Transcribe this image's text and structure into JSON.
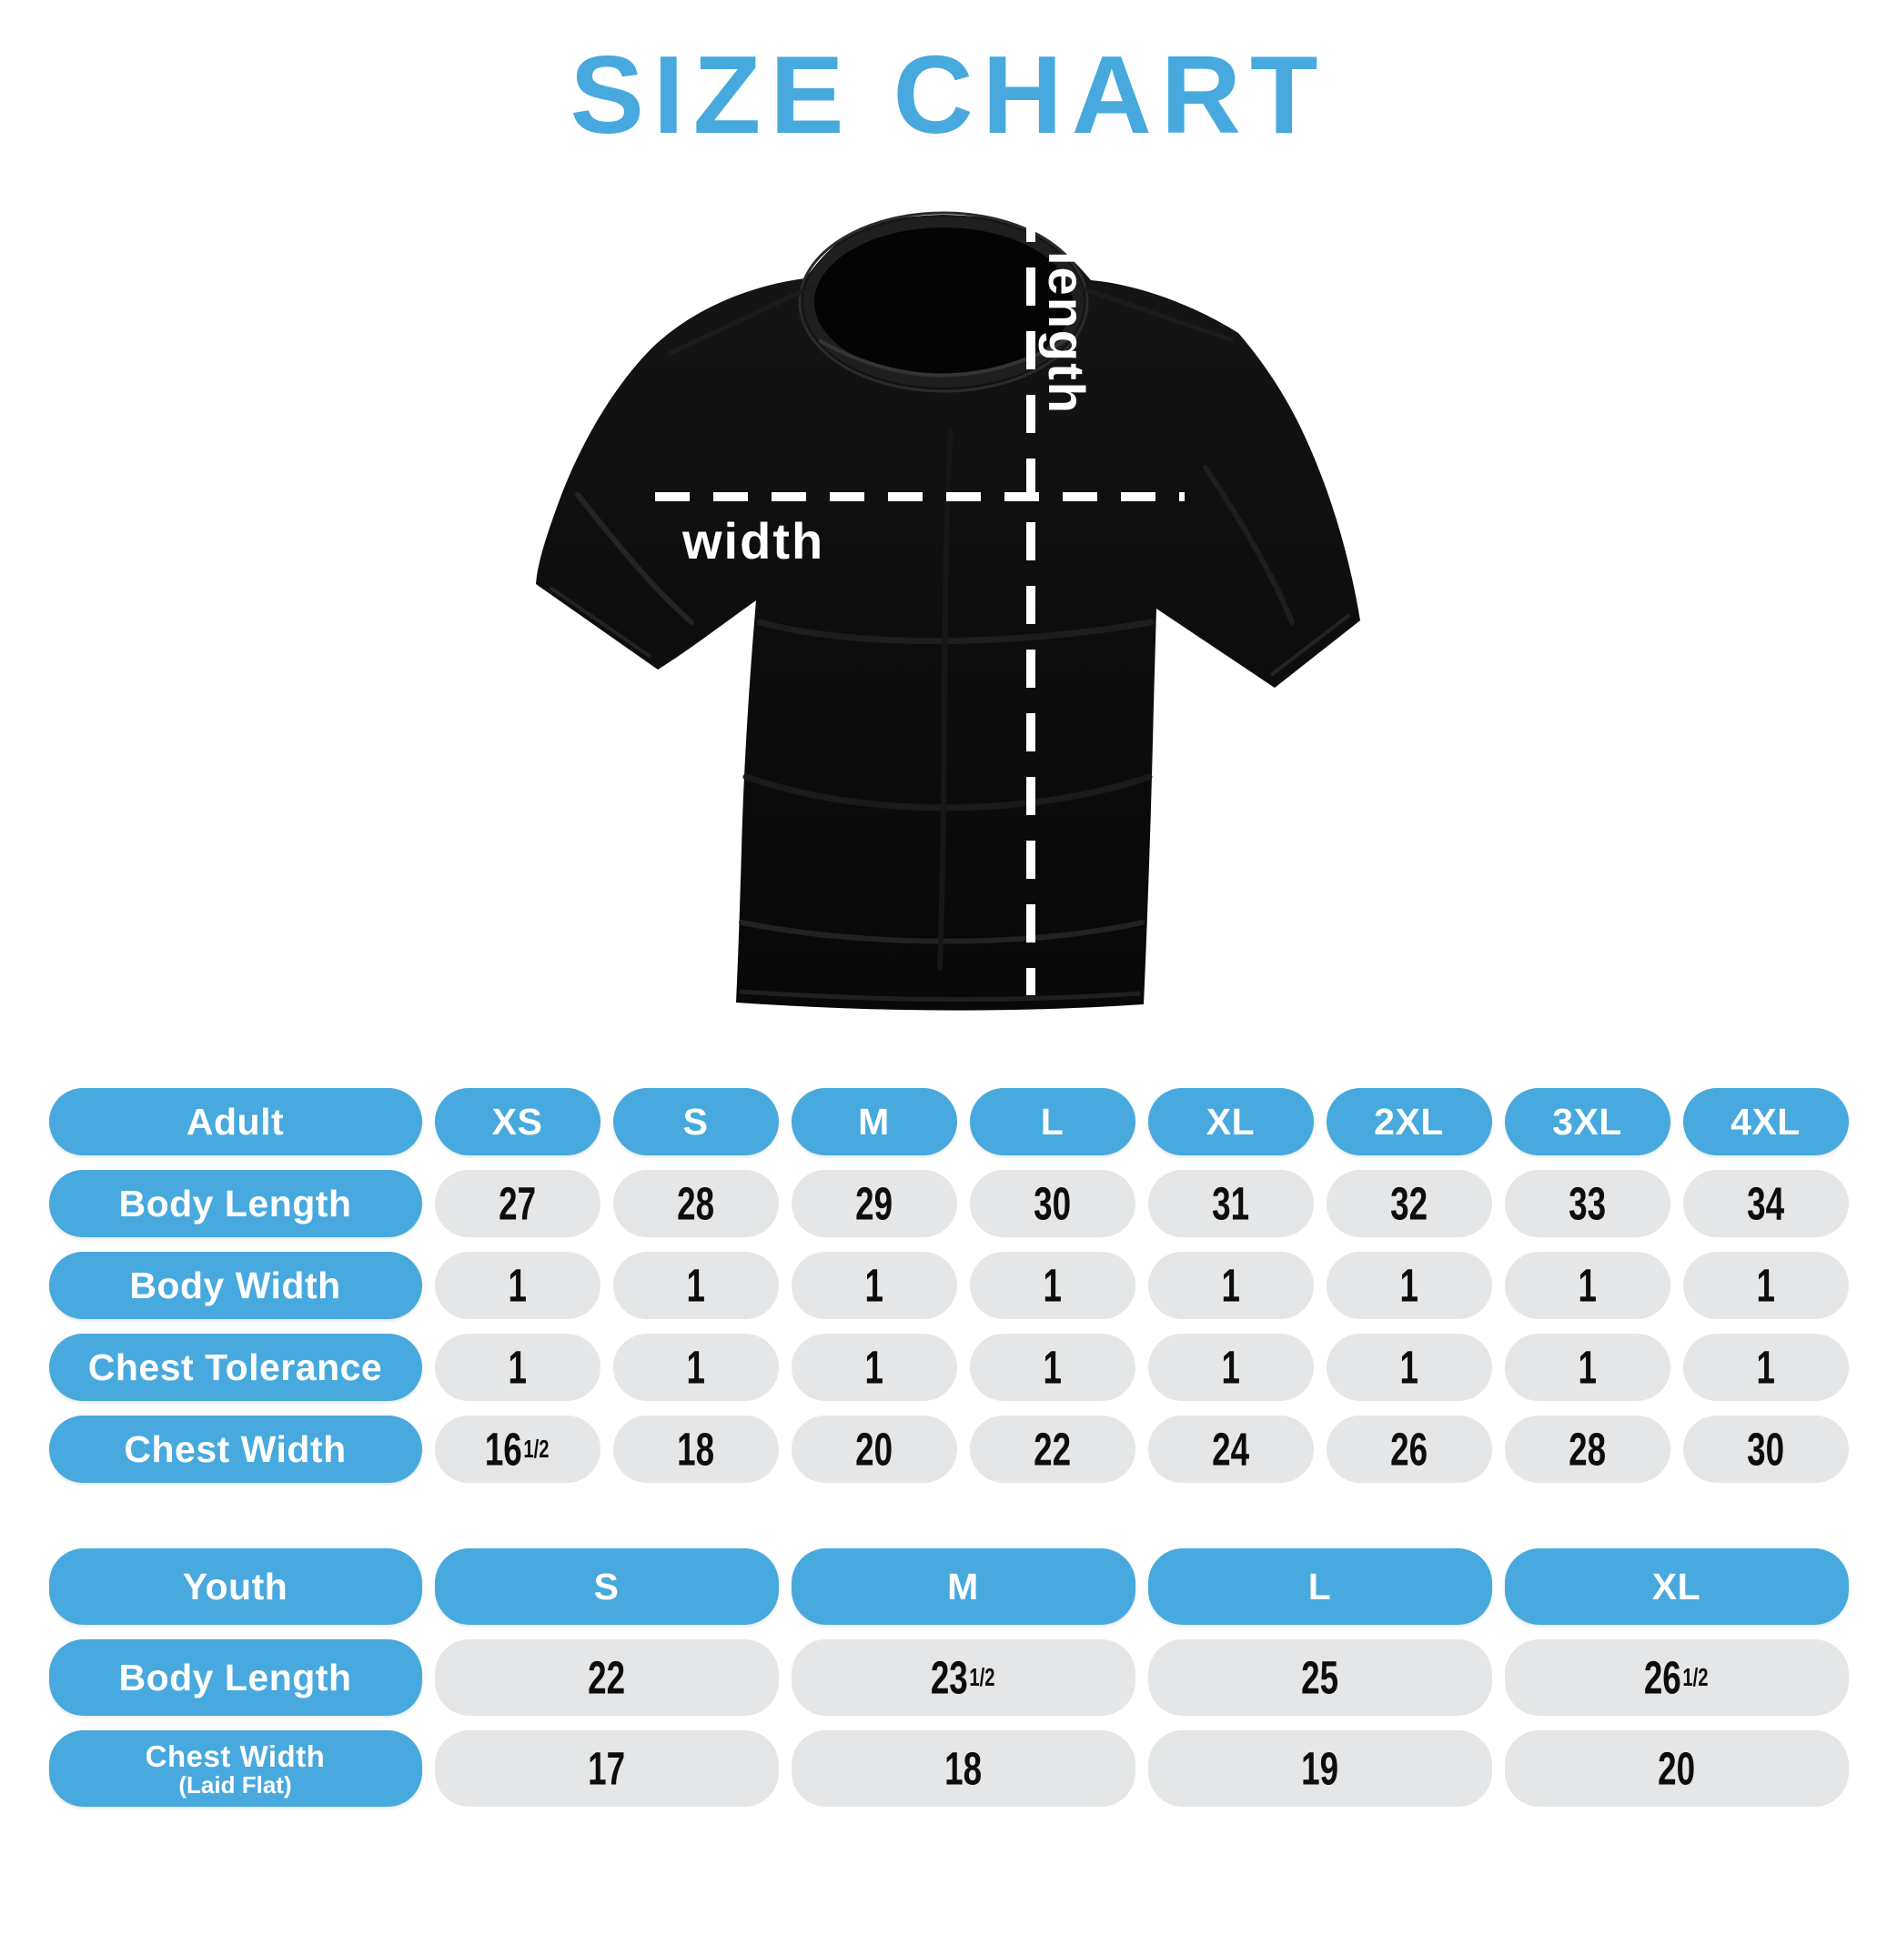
{
  "page": {
    "title": "SIZE CHART"
  },
  "colors": {
    "accent_blue": "#47a9dd",
    "pill_gray": "#e4e6e7",
    "number_black": "#0d0d0d",
    "shirt_black": "#0e0e0e",
    "measure_line_white": "#ffffff"
  },
  "diagram": {
    "length_label": "length",
    "width_label": "width"
  },
  "adult_table": {
    "header": {
      "label": "Adult",
      "sizes": [
        "XS",
        "S",
        "M",
        "L",
        "XL",
        "2XL",
        "3XL",
        "4XL"
      ]
    },
    "rows": [
      {
        "label": "Body Length",
        "values": [
          "27",
          "28",
          "29",
          "30",
          "31",
          "32",
          "33",
          "34"
        ]
      },
      {
        "label": "Body Width",
        "values": [
          "1",
          "1",
          "1",
          "1",
          "1",
          "1",
          "1",
          "1"
        ]
      },
      {
        "label": "Chest Tolerance",
        "values": [
          "1",
          "1",
          "1",
          "1",
          "1",
          "1",
          "1",
          "1"
        ]
      },
      {
        "label": "Chest Width",
        "values": [
          "16 1/2",
          "18",
          "20",
          "22",
          "24",
          "26",
          "28",
          "30"
        ]
      }
    ]
  },
  "youth_table": {
    "header": {
      "label": "Youth",
      "sizes": [
        "S",
        "M",
        "L",
        "XL"
      ]
    },
    "rows": [
      {
        "label": "Body Length",
        "values": [
          "22",
          "23 1/2",
          "25",
          "26 1/2"
        ]
      },
      {
        "label": "Chest Width",
        "sublabel": "(Laid Flat)",
        "values": [
          "17",
          "18",
          "19",
          "20"
        ]
      }
    ]
  },
  "chart_data": [
    {
      "type": "table",
      "title": "SIZE CHART",
      "group": "Adult",
      "columns": [
        "Adult",
        "XS",
        "S",
        "M",
        "L",
        "XL",
        "2XL",
        "3XL",
        "4XL"
      ],
      "rows": [
        [
          "Body Length",
          27,
          28,
          29,
          30,
          31,
          32,
          33,
          34
        ],
        [
          "Body Width",
          1,
          1,
          1,
          1,
          1,
          1,
          1,
          1
        ],
        [
          "Chest Tolerance",
          1,
          1,
          1,
          1,
          1,
          1,
          1,
          1
        ],
        [
          "Chest Width",
          16.5,
          18,
          20,
          22,
          24,
          26,
          28,
          30
        ]
      ]
    },
    {
      "type": "table",
      "title": "SIZE CHART",
      "group": "Youth",
      "columns": [
        "Youth",
        "S",
        "M",
        "L",
        "XL"
      ],
      "rows": [
        [
          "Body Length",
          22,
          23.5,
          25,
          26.5
        ],
        [
          "Chest Width (Laid Flat)",
          17,
          18,
          19,
          20
        ]
      ]
    }
  ]
}
